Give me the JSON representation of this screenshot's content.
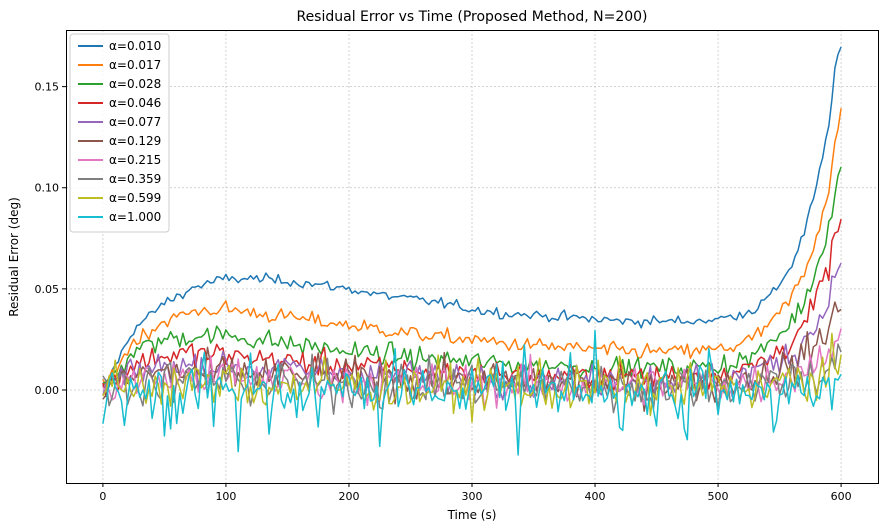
{
  "chart_data": {
    "type": "line",
    "title": "Residual Error vs Time (Proposed Method, N=200)",
    "xlabel": "Time (s)",
    "ylabel": "Residual Error (deg)",
    "xlim": [
      -30,
      630
    ],
    "ylim": [
      -0.046,
      0.178
    ],
    "xticks": [
      0,
      100,
      200,
      300,
      400,
      500,
      600
    ],
    "yticks": [
      0.0,
      0.05,
      0.1,
      0.15
    ],
    "xtick_labels": [
      "0",
      "100",
      "200",
      "300",
      "400",
      "500",
      "600"
    ],
    "ytick_labels": [
      "0.00",
      "0.05",
      "0.10",
      "0.15"
    ],
    "grid": true,
    "legend_position": "top-left",
    "series": [
      {
        "name": "α=0.010",
        "color": "#1f77b4",
        "x": [
          0,
          10,
          25,
          50,
          75,
          100,
          125,
          150,
          175,
          200,
          225,
          250,
          275,
          300,
          325,
          350,
          375,
          400,
          425,
          450,
          475,
          500,
          515,
          530,
          545,
          560,
          570,
          580,
          590,
          595,
          600
        ],
        "y": [
          0.0,
          0.012,
          0.03,
          0.043,
          0.051,
          0.055,
          0.055,
          0.054,
          0.052,
          0.05,
          0.047,
          0.045,
          0.043,
          0.04,
          0.038,
          0.037,
          0.036,
          0.035,
          0.034,
          0.034,
          0.034,
          0.035,
          0.037,
          0.04,
          0.048,
          0.062,
          0.078,
          0.1,
          0.13,
          0.16,
          0.17
        ]
      },
      {
        "name": "α=0.017",
        "color": "#ff7f0e",
        "x": [
          0,
          10,
          25,
          50,
          75,
          100,
          125,
          150,
          175,
          200,
          225,
          250,
          275,
          300,
          325,
          350,
          375,
          400,
          425,
          450,
          475,
          500,
          515,
          530,
          545,
          560,
          570,
          580,
          590,
          595,
          600
        ],
        "y": [
          0.0,
          0.01,
          0.024,
          0.034,
          0.039,
          0.04,
          0.038,
          0.036,
          0.034,
          0.032,
          0.03,
          0.028,
          0.026,
          0.025,
          0.023,
          0.022,
          0.021,
          0.02,
          0.019,
          0.019,
          0.019,
          0.02,
          0.022,
          0.026,
          0.034,
          0.046,
          0.058,
          0.076,
          0.1,
          0.122,
          0.138
        ]
      },
      {
        "name": "α=0.028",
        "color": "#2ca02c",
        "x": [
          0,
          10,
          25,
          50,
          75,
          100,
          125,
          150,
          175,
          200,
          225,
          250,
          275,
          300,
          325,
          350,
          375,
          400,
          425,
          450,
          475,
          500,
          515,
          530,
          545,
          560,
          570,
          580,
          590,
          595,
          600
        ],
        "y": [
          0.0,
          0.008,
          0.019,
          0.025,
          0.027,
          0.027,
          0.025,
          0.023,
          0.021,
          0.019,
          0.018,
          0.016,
          0.015,
          0.014,
          0.013,
          0.012,
          0.012,
          0.011,
          0.011,
          0.011,
          0.011,
          0.012,
          0.014,
          0.017,
          0.024,
          0.034,
          0.044,
          0.06,
          0.082,
          0.098,
          0.11
        ]
      },
      {
        "name": "α=0.046",
        "color": "#d62728",
        "x": [
          0,
          10,
          25,
          50,
          75,
          100,
          125,
          150,
          175,
          200,
          225,
          250,
          275,
          300,
          325,
          350,
          375,
          400,
          425,
          450,
          475,
          500,
          515,
          530,
          545,
          560,
          570,
          580,
          590,
          595,
          600
        ],
        "y": [
          0.0,
          0.006,
          0.013,
          0.017,
          0.018,
          0.017,
          0.016,
          0.014,
          0.013,
          0.012,
          0.011,
          0.01,
          0.009,
          0.008,
          0.008,
          0.007,
          0.007,
          0.007,
          0.007,
          0.007,
          0.007,
          0.008,
          0.009,
          0.012,
          0.017,
          0.025,
          0.032,
          0.044,
          0.062,
          0.076,
          0.082
        ]
      },
      {
        "name": "α=0.077",
        "color": "#9467bd",
        "x": [
          0,
          25,
          50,
          100,
          150,
          200,
          250,
          300,
          350,
          400,
          450,
          500,
          530,
          560,
          580,
          590,
          595,
          600
        ],
        "y": [
          0.0,
          0.009,
          0.012,
          0.012,
          0.01,
          0.008,
          0.007,
          0.006,
          0.005,
          0.005,
          0.005,
          0.006,
          0.009,
          0.018,
          0.032,
          0.046,
          0.056,
          0.06
        ]
      },
      {
        "name": "α=0.129",
        "color": "#8c564b",
        "x": [
          0,
          25,
          50,
          100,
          150,
          200,
          250,
          300,
          350,
          400,
          450,
          500,
          530,
          560,
          580,
          590,
          595,
          600
        ],
        "y": [
          0.0,
          0.007,
          0.009,
          0.008,
          0.007,
          0.006,
          0.005,
          0.004,
          0.004,
          0.003,
          0.003,
          0.004,
          0.006,
          0.012,
          0.022,
          0.032,
          0.038,
          0.04
        ]
      },
      {
        "name": "α=0.215",
        "color": "#e377c2",
        "x": [
          0,
          25,
          50,
          100,
          150,
          200,
          250,
          300,
          350,
          400,
          450,
          500,
          530,
          560,
          580,
          590,
          595,
          600
        ],
        "y": [
          0.0,
          0.005,
          0.006,
          0.006,
          0.005,
          0.004,
          0.003,
          0.003,
          0.002,
          0.002,
          0.002,
          0.003,
          0.004,
          0.008,
          0.014,
          0.02,
          0.024,
          0.026
        ]
      },
      {
        "name": "α=0.359",
        "color": "#7f7f7f",
        "x": [
          0,
          25,
          50,
          100,
          150,
          200,
          250,
          300,
          350,
          400,
          450,
          500,
          530,
          560,
          580,
          590,
          595,
          600
        ],
        "y": [
          0.0,
          0.004,
          0.004,
          0.004,
          0.003,
          0.003,
          0.002,
          0.002,
          0.002,
          0.001,
          0.001,
          0.002,
          0.003,
          0.005,
          0.008,
          0.012,
          0.014,
          0.015
        ]
      },
      {
        "name": "α=0.599",
        "color": "#bcbd22",
        "x": [
          0,
          25,
          50,
          100,
          150,
          200,
          250,
          300,
          350,
          400,
          450,
          500,
          530,
          560,
          580,
          590,
          595,
          600
        ],
        "y": [
          0.0,
          0.002,
          0.003,
          0.002,
          0.002,
          0.002,
          0.001,
          0.001,
          0.001,
          0.001,
          0.001,
          0.001,
          0.002,
          0.003,
          0.005,
          0.007,
          0.008,
          0.008
        ]
      },
      {
        "name": "α=1.000",
        "color": "#17becf",
        "x": [
          0,
          25,
          50,
          100,
          150,
          200,
          250,
          300,
          350,
          400,
          450,
          500,
          530,
          560,
          580,
          590,
          595,
          600
        ],
        "y": [
          0.0,
          0.0,
          0.0,
          0.0,
          0.0,
          0.0,
          0.0,
          0.0,
          0.0,
          0.0,
          0.0,
          0.0,
          0.0,
          0.0,
          0.0,
          0.0,
          0.0,
          0.0
        ]
      }
    ]
  }
}
